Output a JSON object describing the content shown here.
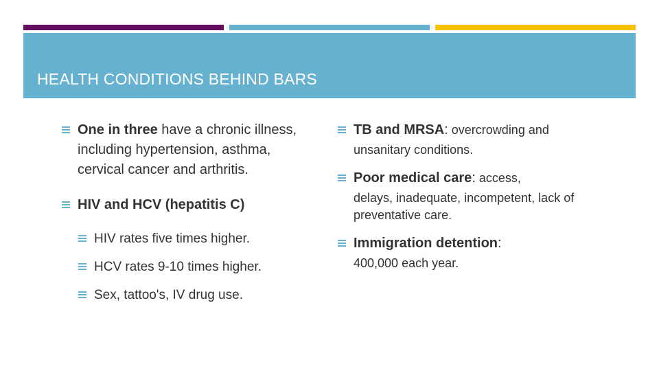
{
  "colors": {
    "accent_purple": "#640c5c",
    "accent_blue": "#66b1cf",
    "accent_yellow": "#f2c200",
    "title_band": "#66b1cf",
    "bullet": "#66b1cf",
    "text": "#333333"
  },
  "slide": {
    "title": "HEALTH CONDITIONS BEHIND BARS",
    "left": {
      "item1": {
        "lead": "One in three",
        "rest": " have a chronic illness, including hypertension, asthma, cervical cancer and arthritis."
      },
      "item2": {
        "lead": "HIV and HCV (hepatitis C)"
      },
      "subs": [
        "HIV rates five times higher.",
        "HCV rates 9-10 times higher.",
        "Sex, tattoo's, IV drug use."
      ]
    },
    "right": {
      "item1": {
        "lead": "TB and MRSA",
        "colon": ":",
        "rest": " overcrowding and",
        "cont": "unsanitary conditions."
      },
      "item2": {
        "lead": "Poor medical care",
        "colon": ":",
        "rest": " access,",
        "cont": "delays, inadequate, incompetent, lack of preventative care."
      },
      "item3": {
        "lead": "Immigration detention",
        "colon": ":",
        "cont": "400,000 each year."
      }
    }
  },
  "icons": {
    "bullet": "list-bullet-icon"
  }
}
